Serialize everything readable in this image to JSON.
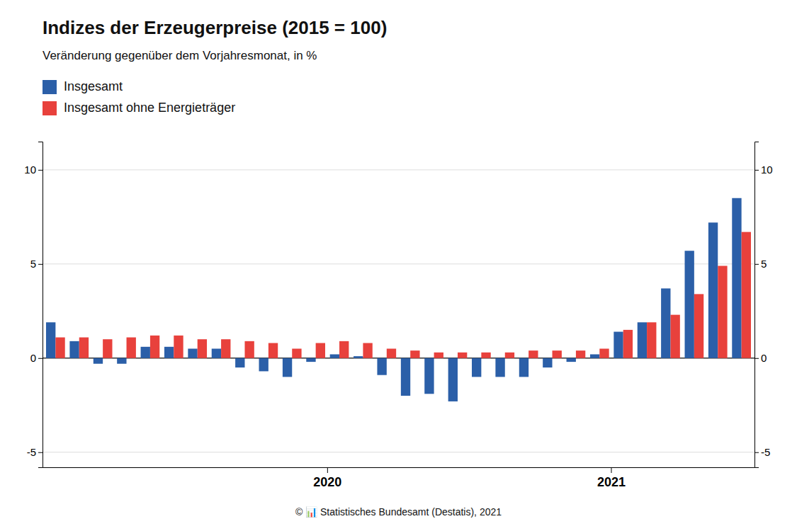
{
  "chart_data": {
    "type": "bar",
    "title": "Indizes der Erzeugerpreise (2015 = 100)",
    "subtitle": "Veränderung gegenüber dem Vorjahresmonat, in %",
    "categories": [
      null,
      null,
      null,
      null,
      null,
      null,
      null,
      null,
      null,
      null,
      null,
      null,
      "2020",
      null,
      null,
      null,
      null,
      null,
      null,
      null,
      null,
      null,
      null,
      null,
      "2021",
      null,
      null,
      null,
      null,
      null
    ],
    "series": [
      {
        "name": "Insgesamt",
        "color": "#2B5FA8",
        "values": [
          1.9,
          0.9,
          -0.3,
          -0.3,
          0.6,
          0.6,
          0.5,
          0.5,
          -0.5,
          -0.7,
          -1.0,
          -0.2,
          0.2,
          0.1,
          -0.9,
          -2.0,
          -1.9,
          -2.3,
          -1.0,
          -1.0,
          -1.0,
          -0.5,
          -0.2,
          0.2,
          1.4,
          1.9,
          3.7,
          5.7,
          7.2,
          8.5
        ]
      },
      {
        "name": "Insgesamt ohne Energieträger",
        "color": "#E8413C",
        "values": [
          1.1,
          1.1,
          1.0,
          1.1,
          1.2,
          1.2,
          1.0,
          1.0,
          0.9,
          0.8,
          0.5,
          0.8,
          0.9,
          0.8,
          0.5,
          0.4,
          0.3,
          0.3,
          0.3,
          0.3,
          0.4,
          0.4,
          0.4,
          0.5,
          1.5,
          1.9,
          2.3,
          3.4,
          4.9,
          6.7
        ]
      }
    ],
    "ylim": [
      -5.8,
      11.5
    ],
    "yticks": [
      -5,
      0,
      5,
      10
    ],
    "grid": true,
    "legend": "upper left",
    "annotations": [
      "© 📊 Statistisches Bundesamt (Destatis), 2021"
    ]
  }
}
